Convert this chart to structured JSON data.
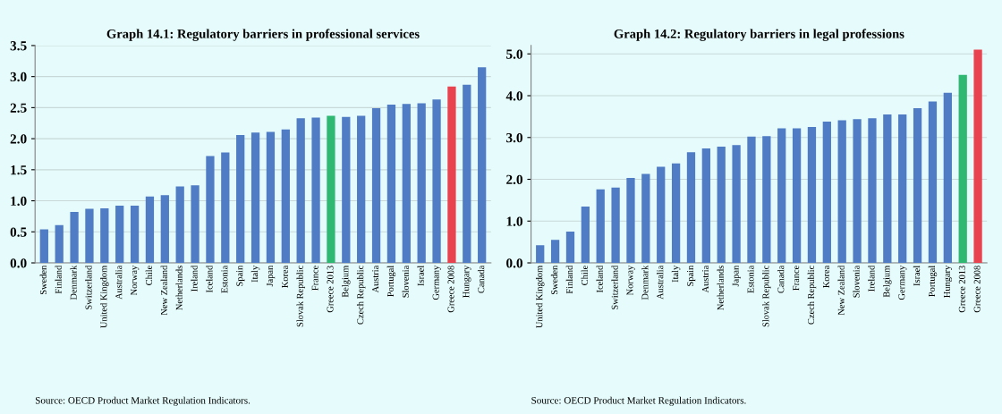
{
  "chart_data": [
    {
      "type": "bar",
      "title": "Graph 14.1: Regulatory barriers in professional services",
      "categories": [
        "Sweden",
        "Finland",
        "Denmark",
        "Switzerland",
        "United Kingdom",
        "Australia",
        "Norway",
        "Chile",
        "New Zealand",
        "Netherlands",
        "Ireland",
        "Iceland",
        "Estonia",
        "Spain",
        "Italy",
        "Japan",
        "Korea",
        "Slovak Republic",
        "France",
        "Greece 2013",
        "Belgium",
        "Czech Republic",
        "Austria",
        "Portugal",
        "Slovenia",
        "Israel",
        "Germany",
        "Greece 2008",
        "Hungary",
        "Canada"
      ],
      "values": [
        0.54,
        0.61,
        0.82,
        0.87,
        0.88,
        0.92,
        0.92,
        1.07,
        1.09,
        1.23,
        1.25,
        1.72,
        1.78,
        2.06,
        2.1,
        2.11,
        2.15,
        2.33,
        2.34,
        2.37,
        2.35,
        2.37,
        2.49,
        2.55,
        2.56,
        2.57,
        2.63,
        2.84,
        2.87,
        3.15
      ],
      "colors": [
        "#4f7cc4",
        "#4f7cc4",
        "#4f7cc4",
        "#4f7cc4",
        "#4f7cc4",
        "#4f7cc4",
        "#4f7cc4",
        "#4f7cc4",
        "#4f7cc4",
        "#4f7cc4",
        "#4f7cc4",
        "#4f7cc4",
        "#4f7cc4",
        "#4f7cc4",
        "#4f7cc4",
        "#4f7cc4",
        "#4f7cc4",
        "#4f7cc4",
        "#4f7cc4",
        "#2eb872",
        "#4f7cc4",
        "#4f7cc4",
        "#4f7cc4",
        "#4f7cc4",
        "#4f7cc4",
        "#4f7cc4",
        "#4f7cc4",
        "#e8434f",
        "#4f7cc4",
        "#4f7cc4"
      ],
      "ylim": [
        0,
        3.5
      ],
      "yticks": [
        {
          "value": 0,
          "label": "0.0"
        },
        {
          "value": 0.5,
          "label": "0.5"
        },
        {
          "value": 1,
          "label": "1.0"
        },
        {
          "value": 1.5,
          "label": "1.5"
        },
        {
          "value": 2,
          "label": "2.0"
        },
        {
          "value": 2.5,
          "label": "2.5"
        },
        {
          "value": 3,
          "label": "3.0"
        },
        {
          "value": 3.5,
          "label": "3.5"
        }
      ],
      "grid": "y",
      "annotations": [
        "Source: OECD Product Market Regulation Indicators."
      ]
    },
    {
      "type": "bar",
      "title": "Graph 14.2: Regulatory barriers in legal professions",
      "categories": [
        "United Kingdom",
        "Sweden",
        "Finland",
        "Chile",
        "Iceland",
        "Switzerland",
        "Norway",
        "Denmark",
        "Australia",
        "Italy",
        "Spain",
        "Austria",
        "Netherlands",
        "Japan",
        "Estonia",
        "Slovak Republic",
        "Canada",
        "France",
        "Czech Republic",
        "Korea",
        "New Zealand",
        "Slovenia",
        "Ireland",
        "Belgium",
        "Germany",
        "Israel",
        "Portugal",
        "Hungary",
        "Greece 2013",
        "Greece 2008"
      ],
      "values": [
        0.42,
        0.55,
        0.75,
        1.35,
        1.76,
        1.8,
        2.03,
        2.13,
        2.3,
        2.38,
        2.65,
        2.74,
        2.78,
        2.82,
        3.02,
        3.03,
        3.22,
        3.22,
        3.25,
        3.38,
        3.41,
        3.44,
        3.46,
        3.55,
        3.55,
        3.7,
        3.86,
        4.07,
        4.5,
        5.1
      ],
      "colors": [
        "#4f7cc4",
        "#4f7cc4",
        "#4f7cc4",
        "#4f7cc4",
        "#4f7cc4",
        "#4f7cc4",
        "#4f7cc4",
        "#4f7cc4",
        "#4f7cc4",
        "#4f7cc4",
        "#4f7cc4",
        "#4f7cc4",
        "#4f7cc4",
        "#4f7cc4",
        "#4f7cc4",
        "#4f7cc4",
        "#4f7cc4",
        "#4f7cc4",
        "#4f7cc4",
        "#4f7cc4",
        "#4f7cc4",
        "#4f7cc4",
        "#4f7cc4",
        "#4f7cc4",
        "#4f7cc4",
        "#4f7cc4",
        "#4f7cc4",
        "#4f7cc4",
        "#2eb872",
        "#e8434f"
      ],
      "ylim": [
        0,
        5.2
      ],
      "yticks": [
        {
          "value": 0,
          "label": "0.0"
        },
        {
          "value": 1,
          "label": "1.0"
        },
        {
          "value": 2,
          "label": "2.0"
        },
        {
          "value": 3,
          "label": "3.0"
        },
        {
          "value": 4,
          "label": "4.0"
        },
        {
          "value": 5,
          "label": "5.0"
        }
      ],
      "grid": "y",
      "annotations": [
        "Source: OECD Product Market Regulation Indicators."
      ]
    }
  ]
}
